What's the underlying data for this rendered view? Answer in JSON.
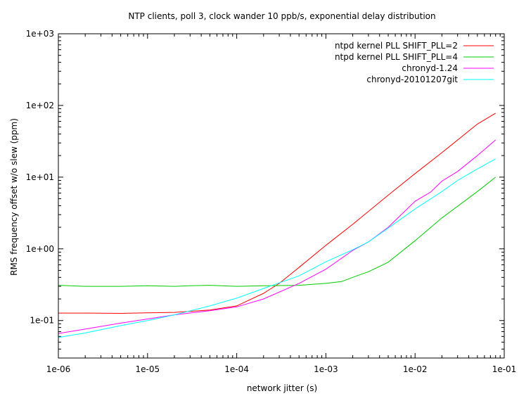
{
  "chart_data": {
    "type": "line",
    "title": "NTP clients, poll 3, clock wander 10 ppb/s, exponential delay distribution",
    "xlabel": "network jitter (s)",
    "ylabel": "RMS frequency offset w/o slew (ppm)",
    "xscale": "log",
    "yscale": "log",
    "xlim": [
      1e-06,
      0.1
    ],
    "ylim": [
      0.03,
      1000
    ],
    "xticks": [
      {
        "value": 1e-06,
        "label": "1e-06"
      },
      {
        "value": 1e-05,
        "label": "1e-05"
      },
      {
        "value": 0.0001,
        "label": "1e-04"
      },
      {
        "value": 0.001,
        "label": "1e-03"
      },
      {
        "value": 0.01,
        "label": "1e-02"
      },
      {
        "value": 0.1,
        "label": "1e-01"
      }
    ],
    "yticks": [
      {
        "value": 0.1,
        "label": "1e-01"
      },
      {
        "value": 1,
        "label": "1e+00"
      },
      {
        "value": 10,
        "label": "1e+01"
      },
      {
        "value": 100,
        "label": "1e+02"
      },
      {
        "value": 1000,
        "label": "1e+03"
      }
    ],
    "grid": false,
    "legend_position": "top-right",
    "series": [
      {
        "name": "ntpd kernel PLL SHIFT_PLL=2",
        "color": "#ff0000",
        "x": [
          1e-06,
          2e-06,
          5e-06,
          1e-05,
          2e-05,
          5e-05,
          0.0001,
          0.0002,
          0.0003,
          0.0005,
          0.001,
          0.002,
          0.005,
          0.01,
          0.02,
          0.05,
          0.08
        ],
        "y": [
          0.127,
          0.127,
          0.126,
          0.128,
          0.13,
          0.14,
          0.16,
          0.24,
          0.33,
          0.55,
          1.12,
          2.2,
          5.6,
          11.2,
          22,
          55,
          78
        ]
      },
      {
        "name": "ntpd kernel PLL SHIFT_PLL=4",
        "color": "#00cc00",
        "x": [
          1e-06,
          2e-06,
          5e-06,
          1e-05,
          2e-05,
          3e-05,
          5e-05,
          0.0001,
          0.0002,
          0.0005,
          0.001,
          0.0015,
          0.002,
          0.003,
          0.005,
          0.01,
          0.02,
          0.05,
          0.08
        ],
        "y": [
          0.31,
          0.3,
          0.3,
          0.305,
          0.3,
          0.305,
          0.31,
          0.3,
          0.305,
          0.31,
          0.33,
          0.35,
          0.4,
          0.48,
          0.65,
          1.3,
          2.7,
          6.3,
          10
        ]
      },
      {
        "name": "chronyd-1.24",
        "color": "#ff00ff",
        "x": [
          1e-06,
          2e-06,
          5e-06,
          1e-05,
          2e-05,
          5e-05,
          0.0001,
          0.0002,
          0.0005,
          0.001,
          0.002,
          0.003,
          0.005,
          0.01,
          0.015,
          0.02,
          0.03,
          0.05,
          0.08
        ],
        "y": [
          0.066,
          0.076,
          0.092,
          0.105,
          0.12,
          0.137,
          0.155,
          0.2,
          0.33,
          0.52,
          0.95,
          1.25,
          2.0,
          4.6,
          6.2,
          8.8,
          12,
          20,
          33
        ]
      },
      {
        "name": "chronyd-20101207git",
        "color": "#00ffff",
        "x": [
          1e-06,
          2e-06,
          5e-06,
          1e-05,
          2e-05,
          5e-05,
          0.0001,
          0.0002,
          0.0005,
          0.001,
          0.002,
          0.003,
          0.005,
          0.01,
          0.02,
          0.03,
          0.05,
          0.08
        ],
        "y": [
          0.058,
          0.067,
          0.085,
          0.1,
          0.12,
          0.16,
          0.205,
          0.28,
          0.42,
          0.66,
          0.97,
          1.25,
          1.95,
          3.6,
          6.3,
          9,
          13,
          18
        ]
      }
    ]
  }
}
